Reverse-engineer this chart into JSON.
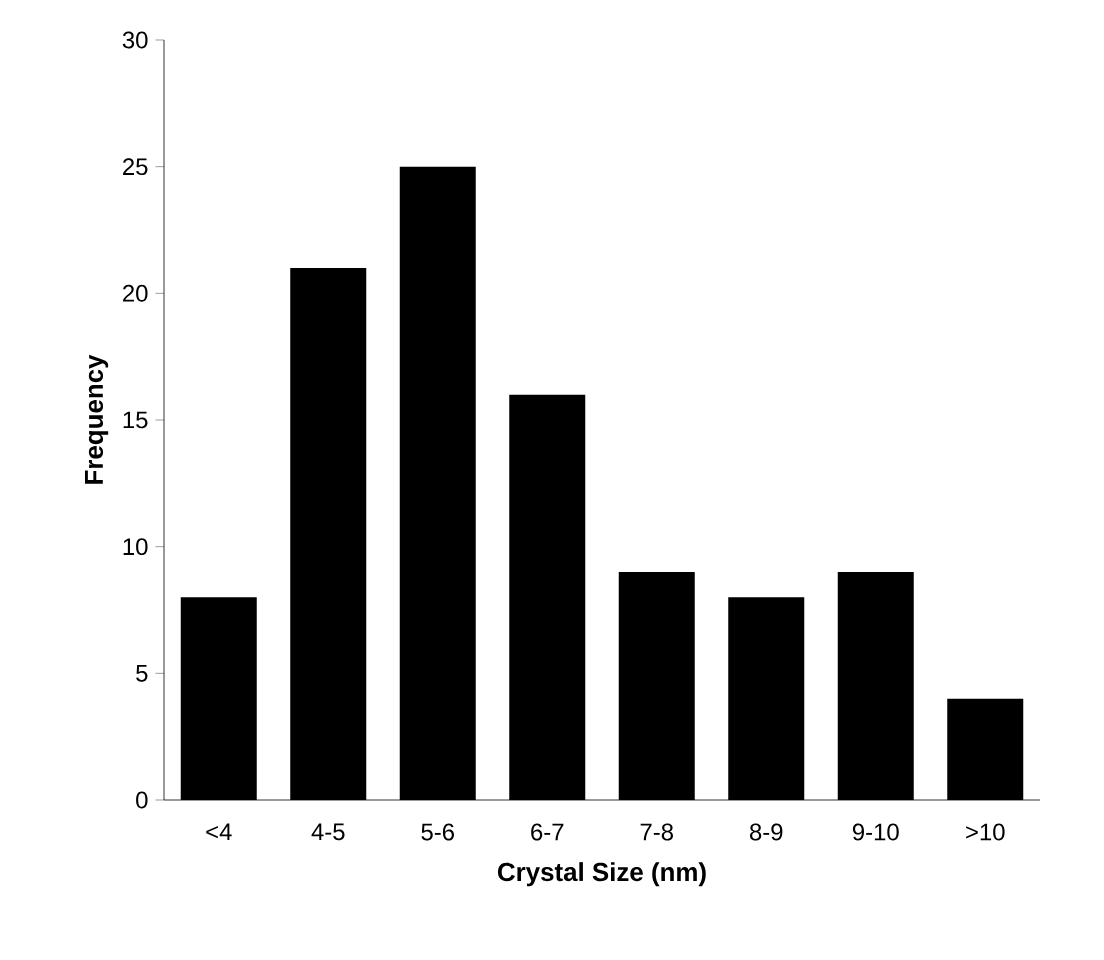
{
  "chart_data": {
    "type": "bar",
    "xlabel": "Crystal Size (nm)",
    "ylabel": "Frequency",
    "categories": [
      "<4",
      "4-5",
      "5-6",
      "6-7",
      "7-8",
      "8-9",
      "9-10",
      ">10"
    ],
    "values": [
      8,
      21,
      25,
      16,
      9,
      8,
      9,
      4
    ],
    "color": "#000000",
    "ylim": [
      0,
      30
    ],
    "yticks": [
      0,
      5,
      10,
      15,
      20,
      25,
      30
    ]
  }
}
